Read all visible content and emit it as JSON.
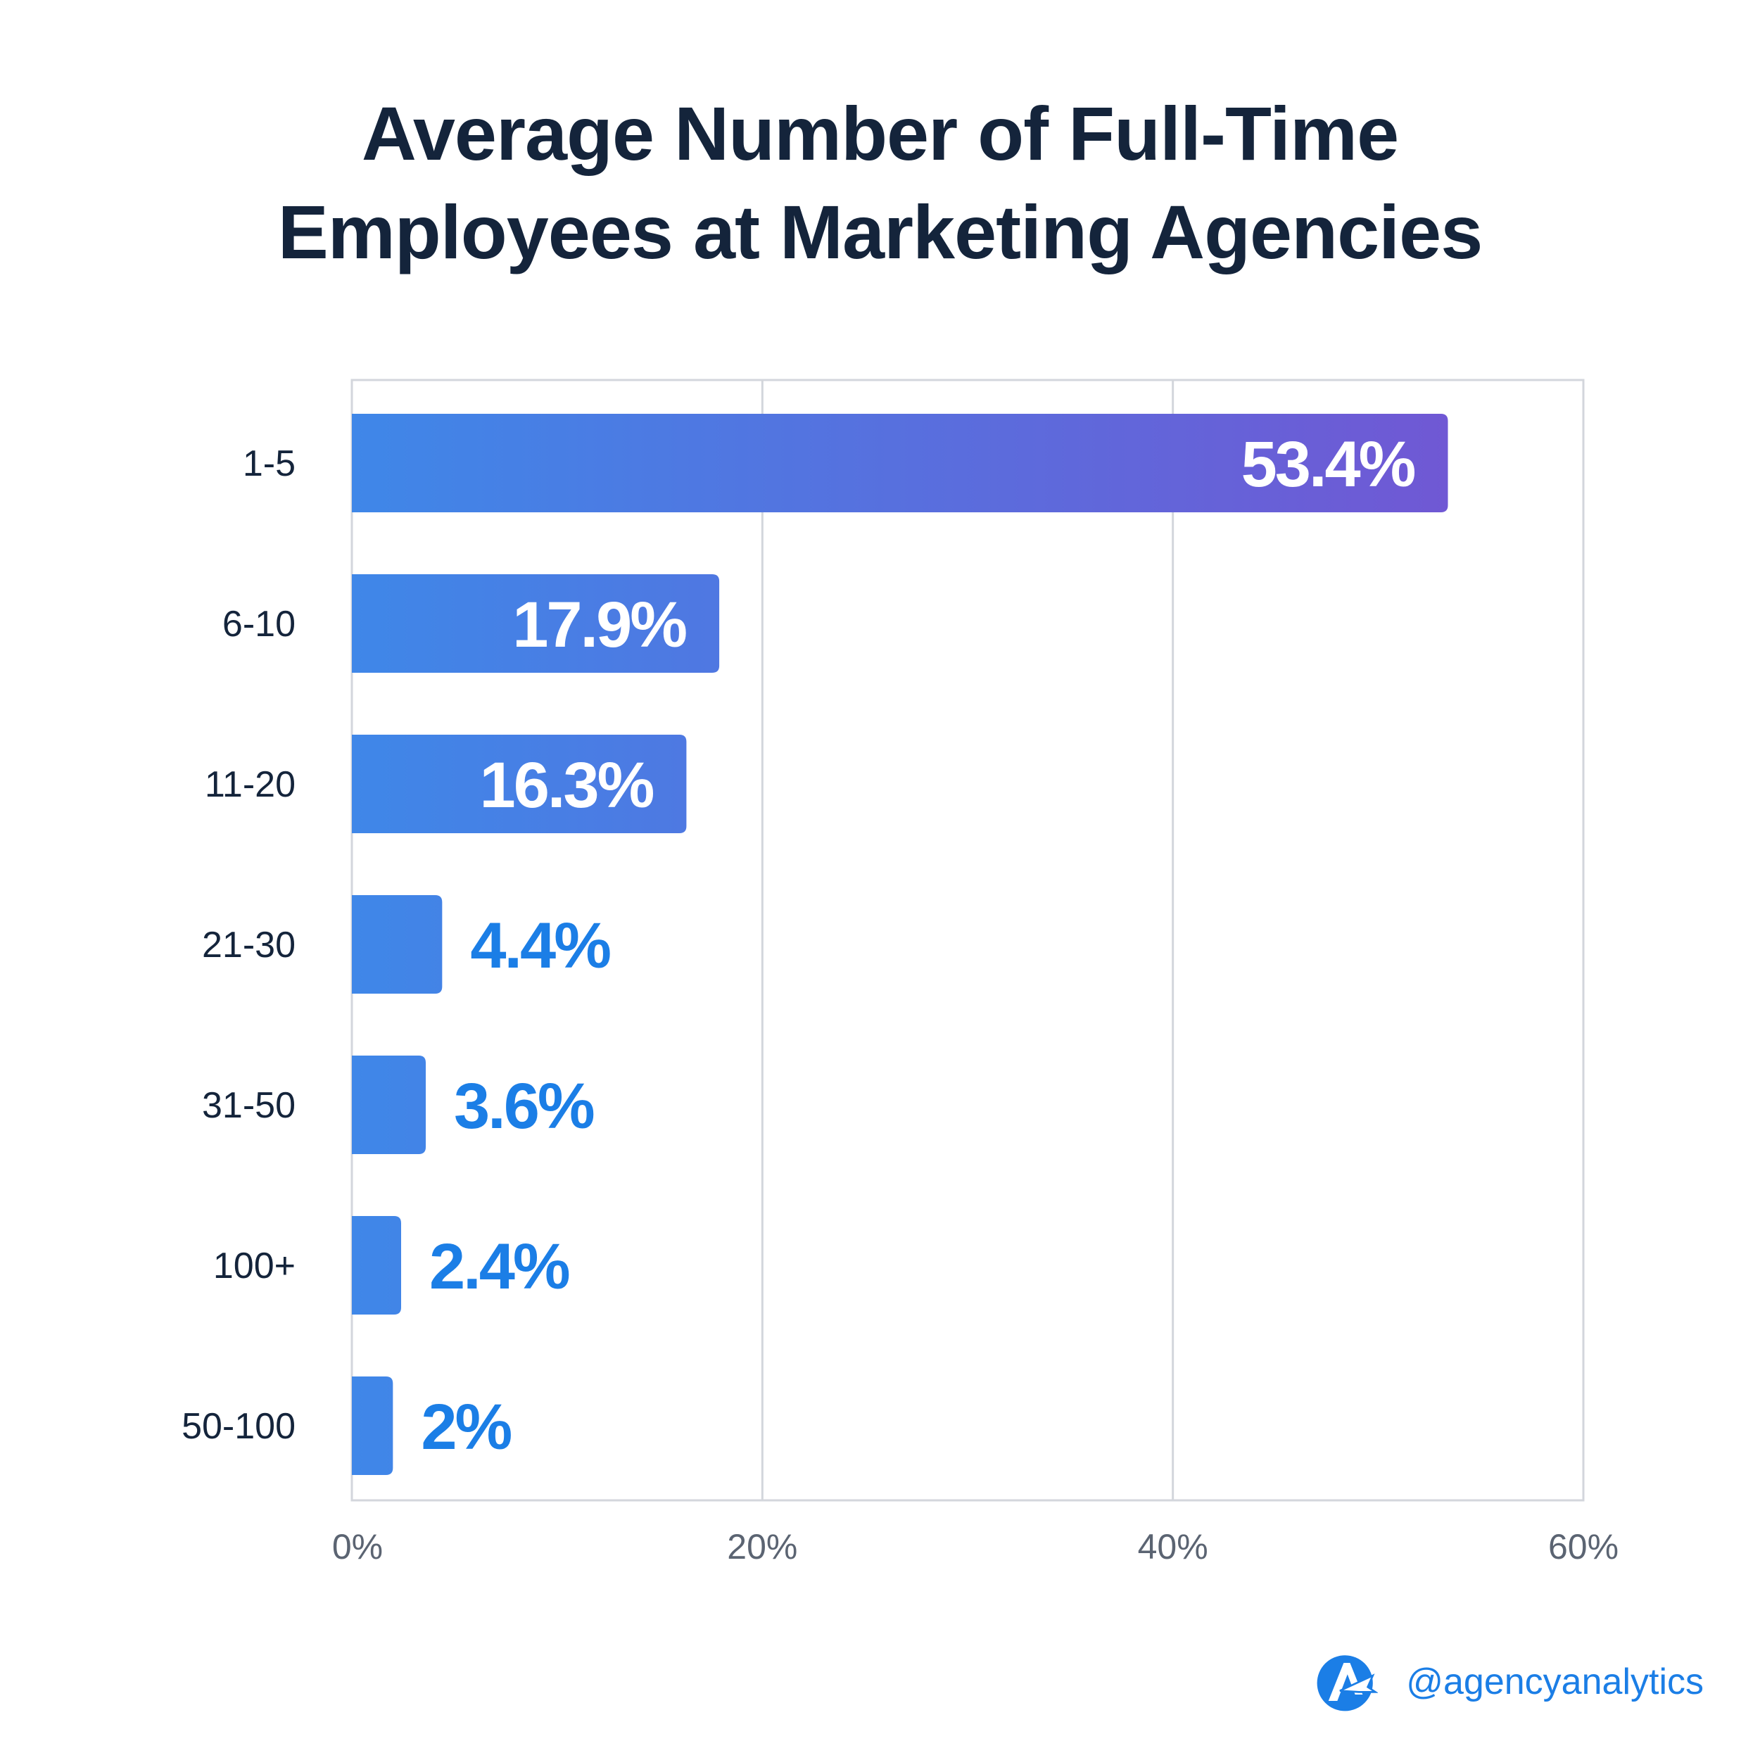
{
  "chart_data": {
    "type": "bar",
    "orientation": "horizontal",
    "title": [
      "Average Number of Full-Time",
      "Employees at Marketing Agencies"
    ],
    "categories": [
      "1-5",
      "6-10",
      "11-20",
      "21-30",
      "31-50",
      "100+",
      "50-100"
    ],
    "values": [
      53.4,
      17.9,
      16.3,
      4.4,
      3.6,
      2.4,
      2
    ],
    "value_labels": [
      "53.4%",
      "17.9%",
      "16.3%",
      "4.4%",
      "3.6%",
      "2.4%",
      "2%"
    ],
    "xlim": [
      0,
      60
    ],
    "xticks": [
      0,
      20,
      40,
      60
    ],
    "xtick_labels": [
      "0%",
      "20%",
      "40%",
      "60%"
    ],
    "grid": true,
    "colors": {
      "bar_start": "#3f87e8",
      "bar_end": "#7058d4",
      "label_inside": "#ffffff",
      "label_outside": "#1b7ee6",
      "grid": "#d3d6dc",
      "category_text": "#14243b",
      "tick_text": "#5b6472"
    }
  },
  "footer": {
    "handle": "@agencyanalytics",
    "logo_icon": "agencyanalytics-logo-icon"
  }
}
